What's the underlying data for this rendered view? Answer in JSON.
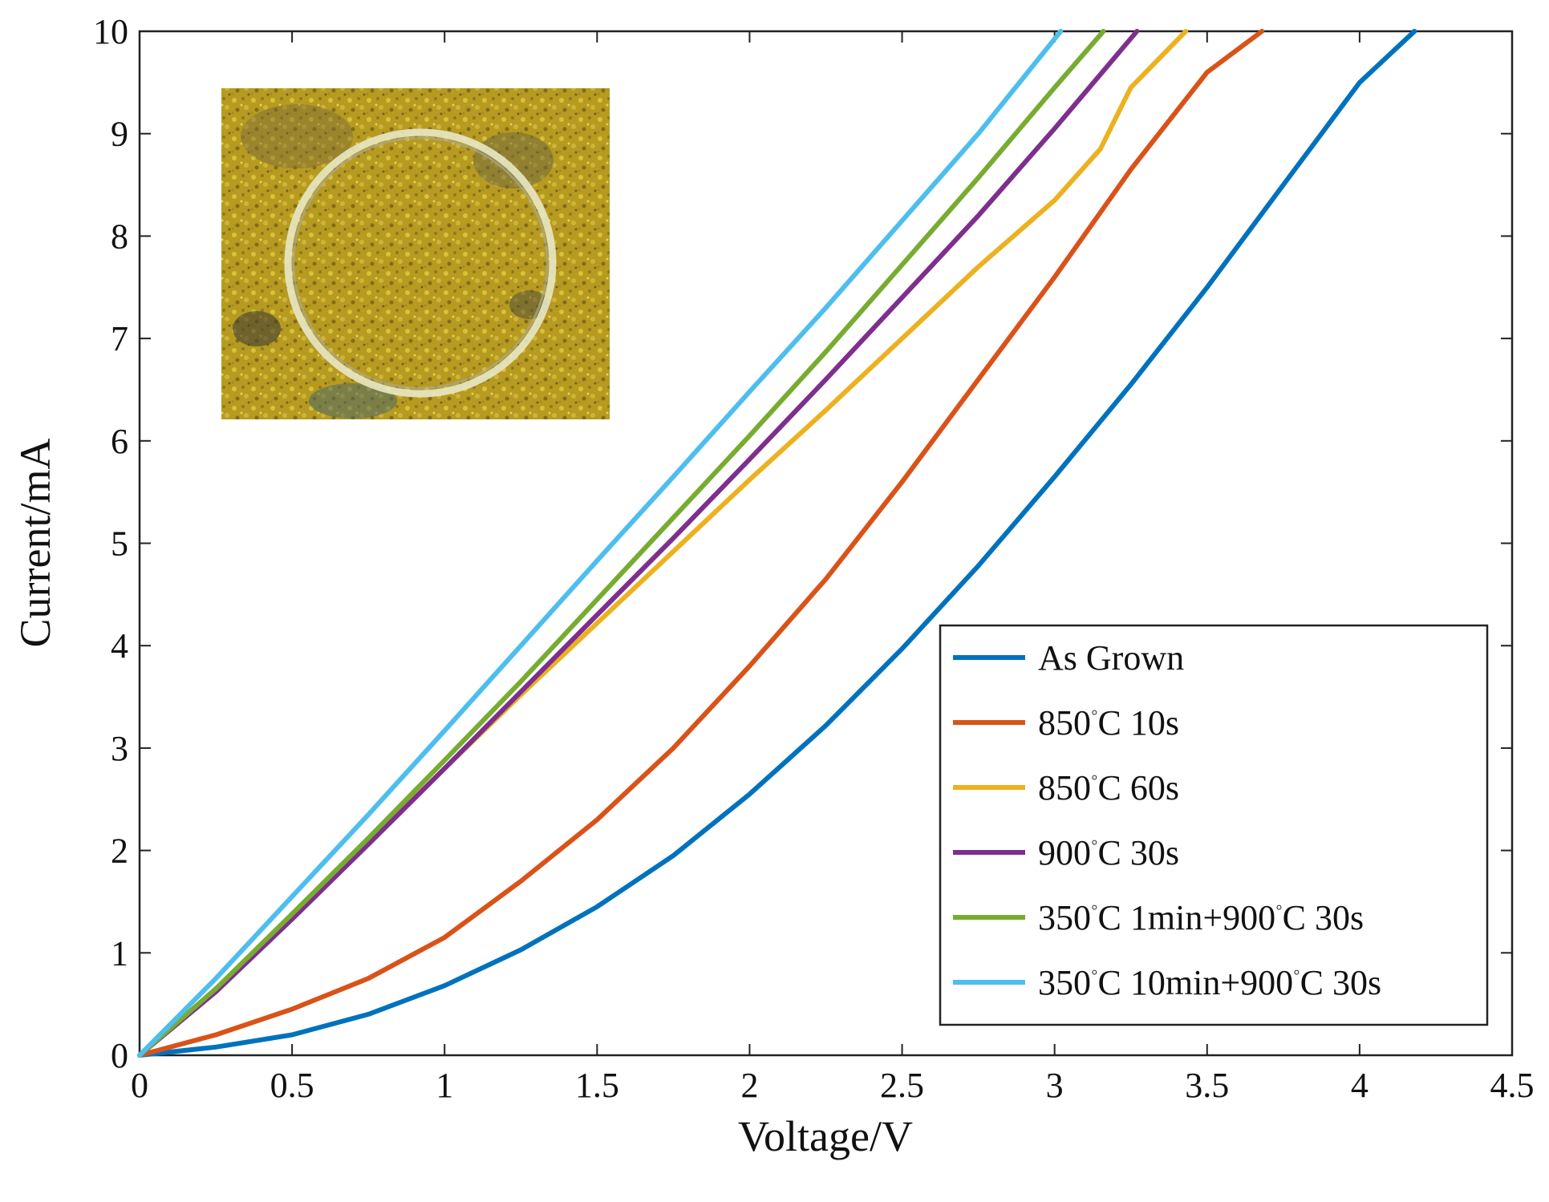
{
  "chart_data": {
    "type": "line",
    "title": "",
    "xlabel": "Voltage/V",
    "ylabel": "Current/mA",
    "xlim": [
      0,
      4.5
    ],
    "ylim": [
      0,
      10
    ],
    "xticks": [
      "0",
      "0.5",
      "1",
      "1.5",
      "2",
      "2.5",
      "3",
      "3.5",
      "4",
      "4.5"
    ],
    "yticks": [
      "0",
      "1",
      "2",
      "3",
      "4",
      "5",
      "6",
      "7",
      "8",
      "9",
      "10"
    ],
    "grid": false,
    "legend_position": "bottom-right",
    "inset_image": "circular-electrode-micrograph",
    "series": [
      {
        "name": "As Grown",
        "legend": {
          "before": "As Grown",
          "after": ""
        },
        "color": "#0072BD",
        "x": [
          0,
          0.25,
          0.5,
          0.75,
          1.0,
          1.25,
          1.5,
          1.75,
          2.0,
          2.25,
          2.5,
          2.75,
          3.0,
          3.25,
          3.5,
          3.75,
          4.0,
          4.18
        ],
        "y": [
          0,
          0.08,
          0.2,
          0.4,
          0.68,
          1.03,
          1.45,
          1.95,
          2.55,
          3.22,
          3.97,
          4.78,
          5.65,
          6.55,
          7.5,
          8.5,
          9.5,
          10.0
        ]
      },
      {
        "name": "850°C 10s",
        "legend": {
          "before": "850",
          "after": "C 10s"
        },
        "color": "#D95319",
        "x": [
          0,
          0.25,
          0.5,
          0.75,
          1.0,
          1.25,
          1.5,
          1.75,
          2.0,
          2.25,
          2.5,
          2.75,
          3.0,
          3.25,
          3.5,
          3.68
        ],
        "y": [
          0,
          0.2,
          0.45,
          0.75,
          1.15,
          1.7,
          2.3,
          3.0,
          3.8,
          4.65,
          5.6,
          6.6,
          7.6,
          8.65,
          9.6,
          10.0
        ]
      },
      {
        "name": "850°C 60s",
        "legend": {
          "before": "850",
          "after": "C 60s"
        },
        "color": "#EDB120",
        "x": [
          0,
          0.25,
          0.5,
          0.75,
          1.0,
          1.25,
          1.5,
          1.75,
          2.0,
          2.25,
          2.5,
          2.75,
          3.0,
          3.15,
          3.25,
          3.43
        ],
        "y": [
          0,
          0.65,
          1.35,
          2.08,
          2.8,
          3.52,
          4.22,
          4.92,
          5.62,
          6.3,
          7.0,
          7.7,
          8.35,
          8.85,
          9.45,
          10.0
        ]
      },
      {
        "name": "900°C 30s",
        "legend": {
          "before": "900",
          "after": "C 30s"
        },
        "color": "#7E2F8E",
        "x": [
          0,
          0.25,
          0.5,
          0.75,
          1.0,
          1.25,
          1.5,
          1.75,
          2.0,
          2.25,
          2.5,
          2.75,
          3.0,
          3.27
        ],
        "y": [
          0,
          0.62,
          1.33,
          2.06,
          2.8,
          3.55,
          4.3,
          5.05,
          5.82,
          6.6,
          7.4,
          8.2,
          9.05,
          10.0
        ]
      },
      {
        "name": "350°C 1min+900°C 30s",
        "legend": {
          "before": "350",
          "after": "C 1min+900",
          "after2": "C 30s"
        },
        "color": "#77AC30",
        "x": [
          0,
          0.25,
          0.5,
          0.75,
          1.0,
          1.25,
          1.5,
          1.75,
          2.0,
          2.25,
          2.5,
          2.75,
          3.0,
          3.16
        ],
        "y": [
          0,
          0.65,
          1.38,
          2.12,
          2.88,
          3.65,
          4.45,
          5.25,
          6.05,
          6.87,
          7.72,
          8.57,
          9.45,
          10.0
        ]
      },
      {
        "name": "350°C 10min+900°C 30s",
        "legend": {
          "before": "350",
          "after": "C 10min+900",
          "after2": "C 30s"
        },
        "color": "#4DBEEE",
        "x": [
          0,
          0.25,
          0.5,
          0.75,
          1.0,
          1.25,
          1.5,
          1.75,
          2.0,
          2.25,
          2.5,
          2.75,
          3.02
        ],
        "y": [
          0,
          0.75,
          1.55,
          2.35,
          3.17,
          4.0,
          4.83,
          5.65,
          6.48,
          7.3,
          8.15,
          9.0,
          10.0
        ]
      }
    ]
  }
}
